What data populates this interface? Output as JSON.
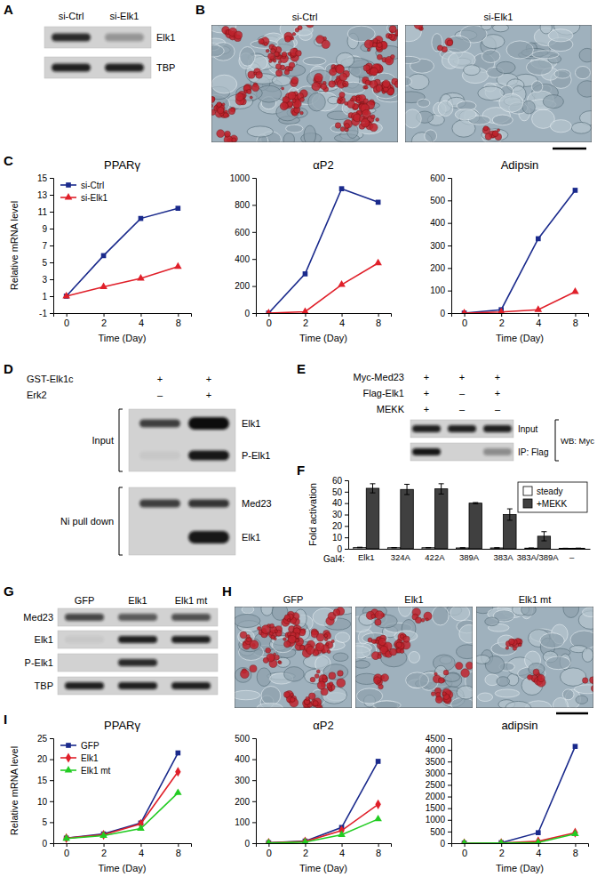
{
  "panel_labels": [
    "A",
    "B",
    "C",
    "D",
    "E",
    "F",
    "G",
    "H",
    "I"
  ],
  "blots": {
    "A": {
      "columns": [
        "si-Ctrl",
        "si-Elk1"
      ],
      "rows": [
        "Elk1",
        "TBP"
      ]
    },
    "D": {
      "conditions": [
        {
          "label": "GST-Elk1c",
          "marks": [
            "+",
            "+"
          ]
        },
        {
          "label": "Erk2",
          "marks": [
            "–",
            "+"
          ]
        }
      ],
      "groups": [
        {
          "label": "Input",
          "rows": [
            "Elk1",
            "P-Elk1"
          ]
        },
        {
          "label": "Ni pull down",
          "rows": [
            "Med23",
            "Elk1"
          ]
        }
      ]
    },
    "E": {
      "conditions": [
        {
          "label": "Myc-Med23",
          "marks": [
            "+",
            "+",
            "+"
          ]
        },
        {
          "label": "Flag-Elk1",
          "marks": [
            "+",
            "–",
            "+"
          ]
        },
        {
          "label": "MEKK",
          "marks": [
            "+",
            "–",
            "–"
          ]
        }
      ],
      "rows": [
        "Input",
        "IP: Flag"
      ],
      "side_label": "WB: Myc"
    },
    "G": {
      "columns": [
        "GFP",
        "Elk1",
        "Elk1 mt"
      ],
      "rows": [
        "Med23",
        "Elk1",
        "P-Elk1",
        "TBP"
      ]
    }
  },
  "micrographs": {
    "B": [
      "si-Ctrl",
      "si-Elk1"
    ],
    "H": [
      "GFP",
      "Elk1",
      "Elk1 mt"
    ]
  },
  "chart_data": [
    {
      "type": "line",
      "title": "PPARγ",
      "x_label": "Time (Day)",
      "y_label": "Relative mRNA level",
      "categories": [
        "0",
        "2",
        "4",
        "8"
      ],
      "series": [
        {
          "name": "si-Ctrl",
          "color": "#1a2a8c",
          "marker": "square",
          "values": [
            1,
            5.8,
            10.2,
            11.4
          ]
        },
        {
          "name": "si-Elk1",
          "color": "#e0202a",
          "marker": "triangle",
          "values": [
            1,
            2.1,
            3.1,
            4.5
          ]
        }
      ],
      "ylim": [
        -1,
        15
      ],
      "yticks": [
        -1,
        1,
        3,
        5,
        7,
        9,
        11,
        13,
        15
      ],
      "legend": "upper left"
    },
    {
      "type": "line",
      "title": "αP2",
      "x_label": "Time (Day)",
      "categories": [
        "0",
        "2",
        "4",
        "8"
      ],
      "series": [
        {
          "color": "#1a2a8c",
          "marker": "square",
          "values": [
            0,
            290,
            920,
            820
          ]
        },
        {
          "color": "#e0202a",
          "marker": "triangle",
          "values": [
            0,
            10,
            210,
            370
          ]
        }
      ],
      "ylim": [
        0,
        1000
      ],
      "yticks": [
        0,
        200,
        400,
        600,
        800,
        1000
      ]
    },
    {
      "type": "line",
      "title": "Adipsin",
      "x_label": "Time (Day)",
      "categories": [
        "0",
        "2",
        "4",
        "8"
      ],
      "series": [
        {
          "color": "#1a2a8c",
          "marker": "square",
          "values": [
            0,
            15,
            330,
            545
          ]
        },
        {
          "color": "#e0202a",
          "marker": "triangle",
          "values": [
            0,
            5,
            15,
            95
          ]
        }
      ],
      "ylim": [
        0,
        600
      ],
      "yticks": [
        0,
        100,
        200,
        300,
        400,
        500,
        600
      ]
    },
    {
      "type": "bar",
      "x_label": "Gal4:",
      "y_label": "Fold activation",
      "categories": [
        "Elk1",
        "324A",
        "422A",
        "389A",
        "383A",
        "383A/389A",
        "–"
      ],
      "series": [
        {
          "name": "steady",
          "color": "#ffffff",
          "values": [
            1.2,
            1.0,
            1.0,
            0.8,
            0.8,
            0.6,
            0.4
          ],
          "errors": [
            0.2,
            0.1,
            0.1,
            0.1,
            0.1,
            0.1,
            0.1
          ]
        },
        {
          "name": "+MEKK",
          "color": "#404040",
          "values": [
            53,
            52,
            52.5,
            40,
            30,
            11,
            0.5
          ],
          "errors": [
            4,
            4.5,
            4.5,
            0.5,
            5,
            4,
            0
          ]
        }
      ],
      "ylim": [
        0,
        60
      ],
      "yticks": [
        0,
        10,
        20,
        30,
        40,
        50,
        60
      ],
      "legend": "upper right"
    },
    {
      "type": "line",
      "title": "PPARγ",
      "x_label": "Time (Day)",
      "y_label": "Relative mRNA level",
      "categories": [
        "0",
        "2",
        "4",
        "8"
      ],
      "series": [
        {
          "name": "GFP",
          "color": "#1a2a8c",
          "marker": "square",
          "values": [
            1.2,
            2.2,
            4.8,
            21.5
          ]
        },
        {
          "name": "Elk1",
          "color": "#e0202a",
          "marker": "diamond",
          "values": [
            1.2,
            2.0,
            4.6,
            17
          ]
        },
        {
          "name": "Elk1 mt",
          "color": "#22cc22",
          "marker": "triangle",
          "values": [
            1.1,
            1.8,
            3.5,
            12
          ]
        }
      ],
      "ylim": [
        0,
        25
      ],
      "yticks": [
        0,
        5,
        10,
        15,
        20,
        25
      ],
      "legend": "upper left"
    },
    {
      "type": "line",
      "title": "αP2",
      "x_label": "Time (Day)",
      "categories": [
        "0",
        "2",
        "4",
        "8"
      ],
      "series": [
        {
          "color": "#1a2a8c",
          "marker": "square",
          "values": [
            2,
            10,
            75,
            390
          ]
        },
        {
          "color": "#e0202a",
          "marker": "diamond",
          "values": [
            2,
            8,
            60,
            185
          ]
        },
        {
          "color": "#22cc22",
          "marker": "triangle",
          "values": [
            1,
            5,
            40,
            115
          ]
        }
      ],
      "ylim": [
        0,
        500
      ],
      "yticks": [
        0,
        100,
        200,
        300,
        400,
        500
      ]
    },
    {
      "type": "line",
      "title": "adipsin",
      "x_label": "Time (Day)",
      "categories": [
        "0",
        "2",
        "4",
        "8"
      ],
      "series": [
        {
          "color": "#1a2a8c",
          "marker": "square",
          "values": [
            2,
            20,
            450,
            4150
          ]
        },
        {
          "color": "#e0202a",
          "marker": "diamond",
          "values": [
            1,
            10,
            80,
            450
          ]
        },
        {
          "color": "#22cc22",
          "marker": "triangle",
          "values": [
            1,
            5,
            30,
            400
          ]
        }
      ],
      "ylim": [
        0,
        4500
      ],
      "yticks": [
        0,
        500,
        1000,
        1500,
        2000,
        2500,
        3000,
        3500,
        4000,
        4500
      ]
    }
  ]
}
